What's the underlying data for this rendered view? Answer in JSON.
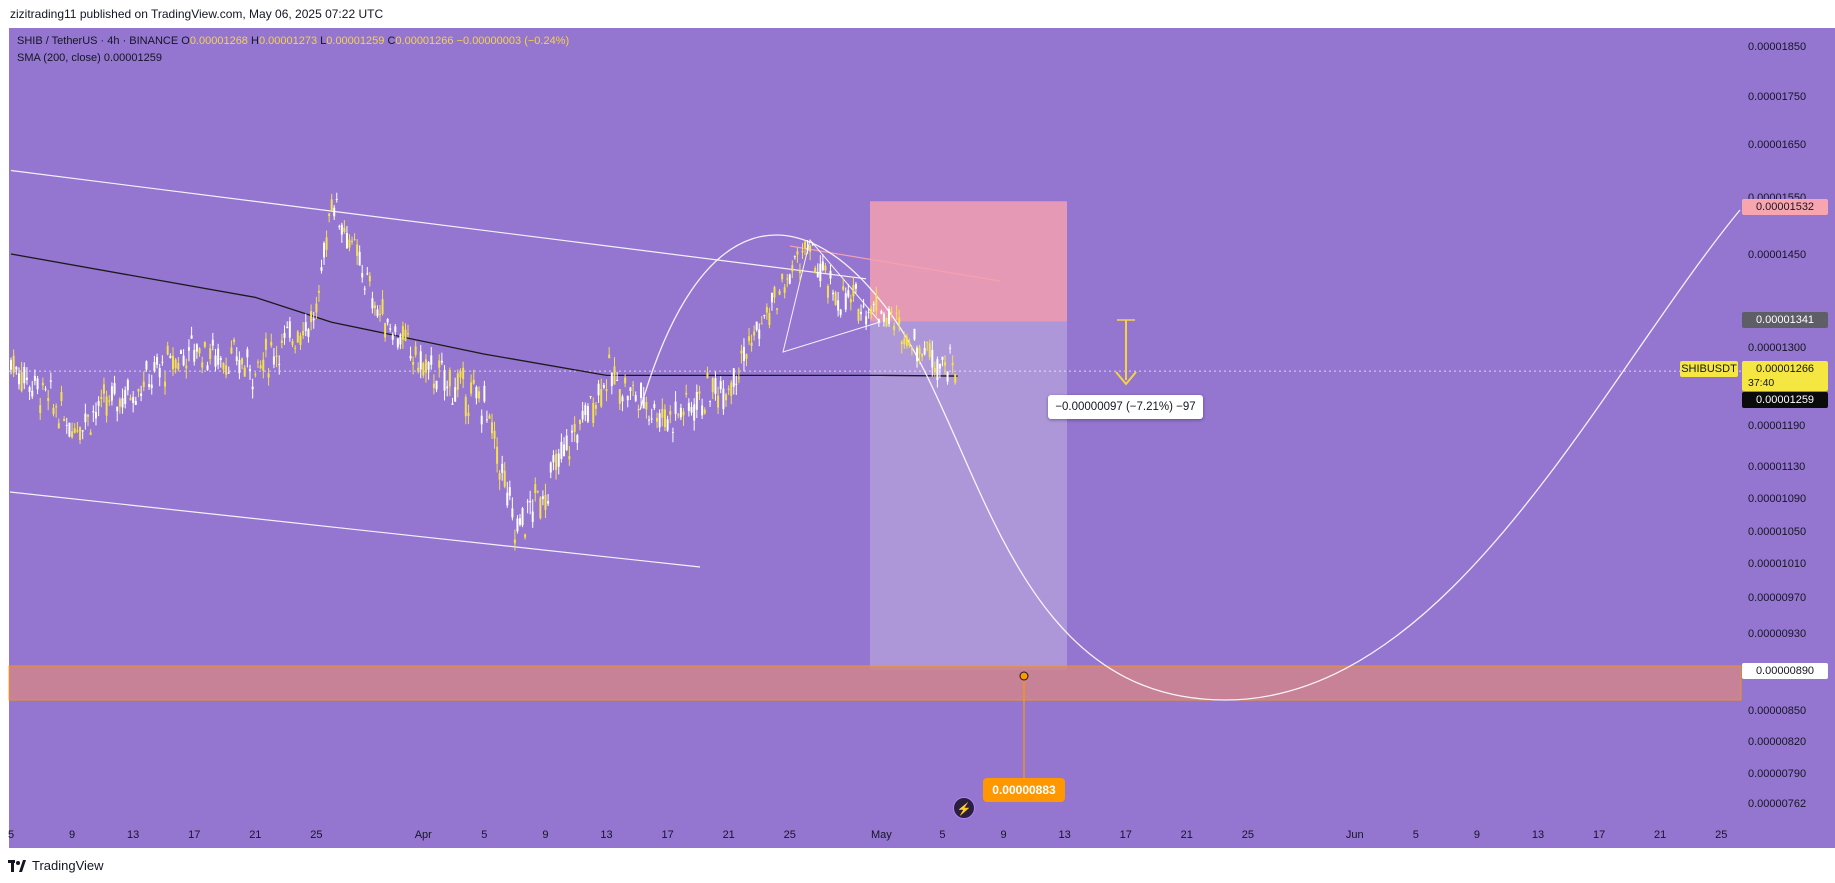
{
  "publish_line": "zizitrading11 published on TradingView.com, May 06, 2025 07:22 UTC",
  "legend": {
    "symbol": "SHIB / TetherUS · 4h · BINANCE",
    "open_label": "O",
    "open": "0.00001268",
    "high_label": "H",
    "high": "0.00001273",
    "low_label": "L",
    "low": "0.00001259",
    "close_label": "C",
    "close": "0.00001266",
    "change": "−0.00000003 (−0.24%)",
    "sma_label": "SMA (200, close)",
    "sma_value": "0.00001259"
  },
  "info_box": "−0.00000097 (−7.21%) −97",
  "target_badge": "0.00000883",
  "price_labels": {
    "top_target": "0.00001532",
    "level_1341": "0.00001341",
    "last_price": "0.00001266",
    "countdown": "37:40",
    "symbol_tag": "SHIBUSDT",
    "sma": "0.00001259",
    "support": "0.00000890"
  },
  "brand": "TradingView",
  "colors": {
    "background": "#9475cf",
    "candle_up": "#f5e050",
    "candle_down": "#ffffff",
    "sma_line": "#1a1a1a",
    "stop_zone": "#f4a0b0",
    "target_zone": "#b5a3dc",
    "support_zone": "#d0858e",
    "support_border": "#ff9800",
    "arrow": "#f5d442"
  },
  "chart_data": {
    "type": "candlestick",
    "series_name": "SHIBUSDT",
    "y_axis_ticks": [
      "0.00001850",
      "0.00001750",
      "0.00001650",
      "0.00001550",
      "0.00001450",
      "0.00001300",
      "0.00001190",
      "0.00001130",
      "0.00001090",
      "0.00001050",
      "0.00001010",
      "0.00000970",
      "0.00000930",
      "0.00000850",
      "0.00000820",
      "0.00000790",
      "0.00000762"
    ],
    "x_axis_ticks": [
      "5",
      "9",
      "13",
      "17",
      "21",
      "25",
      "Apr",
      "5",
      "9",
      "13",
      "17",
      "21",
      "25",
      "May",
      "5",
      "9",
      "13",
      "17",
      "21",
      "25",
      "Jun",
      "5",
      "9",
      "13",
      "17",
      "21",
      "25"
    ],
    "ohlc_close_path": [
      [
        "Mar 05",
        1.28e-05
      ],
      [
        "Mar 09",
        1.19e-05
      ],
      [
        "Mar 13",
        1.24e-05
      ],
      [
        "Mar 17",
        1.3e-05
      ],
      [
        "Mar 21",
        1.27e-05
      ],
      [
        "Mar 25",
        1.35e-05
      ],
      [
        "Mar 26",
        1.55e-05
      ],
      [
        "Mar 29",
        1.36e-05
      ],
      [
        "Apr 01",
        1.27e-05
      ],
      [
        "Apr 05",
        1.22e-05
      ],
      [
        "Apr 07",
        1.05e-05
      ],
      [
        "Apr 09",
        1.1e-05
      ],
      [
        "Apr 13",
        1.26e-05
      ],
      [
        "Apr 17",
        1.2e-05
      ],
      [
        "Apr 21",
        1.25e-05
      ],
      [
        "Apr 24",
        1.37e-05
      ],
      [
        "Apr 26",
        1.46e-05
      ],
      [
        "Apr 28",
        1.38e-05
      ],
      [
        "May 01",
        1.36e-05
      ],
      [
        "May 03",
        1.31e-05
      ],
      [
        "May 06",
        1.266e-05
      ]
    ],
    "sma_200_path": [
      [
        "Mar 05",
        1.45e-05
      ],
      [
        "Mar 21",
        1.38e-05
      ],
      [
        "Mar 26",
        1.34e-05
      ],
      [
        "Apr 05",
        1.29e-05
      ],
      [
        "Apr 13",
        1.26e-05
      ],
      [
        "Apr 21",
        1.26e-05
      ],
      [
        "May 01",
        1.26e-05
      ],
      [
        "May 06",
        1.259e-05
      ]
    ],
    "trendlines": {
      "upper_channel": [
        [
          "Mar 05",
          1.6e-05
        ],
        [
          "Apr 30",
          1.41e-05
        ]
      ],
      "lower_channel": [
        [
          "Mar 05",
          1.14e-05
        ],
        [
          "Apr 22",
          1.02e-05
        ]
      ]
    },
    "short_position": {
      "entry": 1.341e-05,
      "stop": 1.532e-05,
      "target": 8.9e-06,
      "change": "−0.00000097 (−7.21%) −97"
    },
    "support_zone": [
      8.6e-06,
      8.9e-06
    ],
    "projection_target": 8.83e-06,
    "grid": false
  }
}
